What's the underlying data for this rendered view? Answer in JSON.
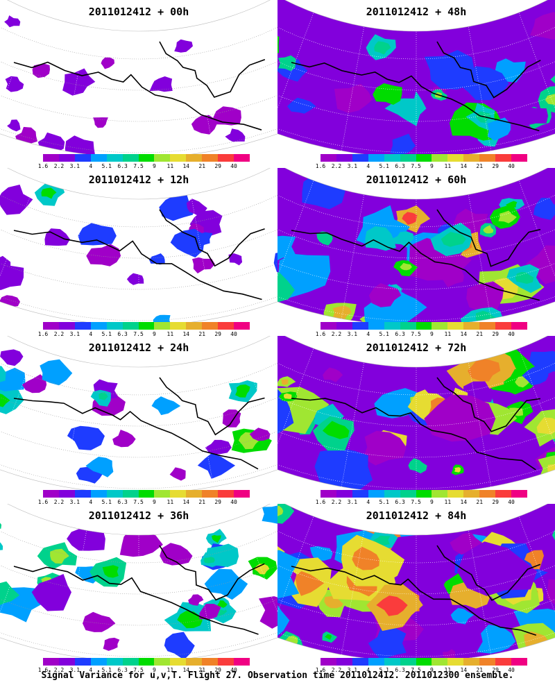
{
  "footer": "Signal Variance for u,v,T. Flight 27. Observation time 2011012412. 2011012300 ensemble.",
  "colorbar": {
    "labels": [
      "1.6",
      "2.2",
      "3.1",
      "4",
      "5.1",
      "6.3",
      "7.5",
      "9",
      "11",
      "14",
      "21",
      "29",
      "40"
    ],
    "colors": [
      "#a000c8",
      "#8200dc",
      "#1e3cff",
      "#00a0ff",
      "#00c8c8",
      "#00d28c",
      "#00dc00",
      "#a0e632",
      "#e6dc32",
      "#e6af2d",
      "#f08228",
      "#fa3c3c",
      "#f00082"
    ]
  },
  "panels": [
    {
      "title": "2011012412 + 00h",
      "lead_hours": 0
    },
    {
      "title": "2011012412 + 48h",
      "lead_hours": 48
    },
    {
      "title": "2011012412 + 12h",
      "lead_hours": 12
    },
    {
      "title": "2011012412 + 60h",
      "lead_hours": 60
    },
    {
      "title": "2011012412 + 24h",
      "lead_hours": 24
    },
    {
      "title": "2011012412 + 72h",
      "lead_hours": 72
    },
    {
      "title": "2011012412 + 36h",
      "lead_hours": 36
    },
    {
      "title": "2011012412 + 84h",
      "lead_hours": 84
    }
  ]
}
